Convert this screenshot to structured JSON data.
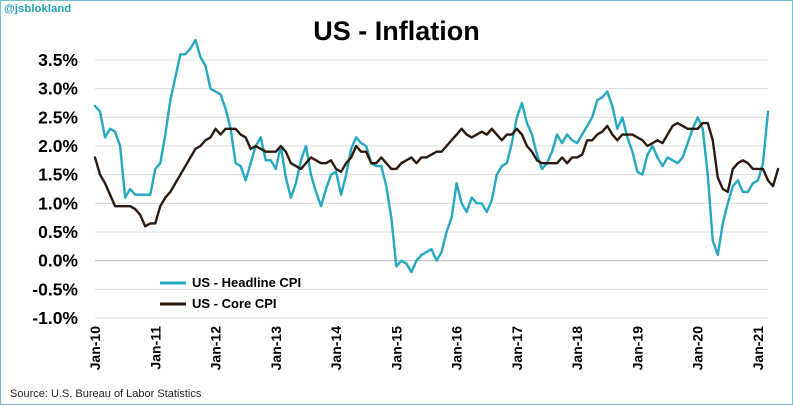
{
  "handle": "@jsblokland",
  "source": "Source: U.S. Bureau of Labor Statistics",
  "colors": {
    "headline": "#26a8c0",
    "core": "#2b1a10",
    "grid": "#dcdcdc",
    "frame": "#6fc3d0"
  },
  "chart_data": {
    "type": "line",
    "title": "US - Inflation",
    "xlabel": "",
    "ylabel": "",
    "ylim": [
      -1.0,
      3.5
    ],
    "yticks": [
      3.5,
      3.0,
      2.5,
      2.0,
      1.5,
      1.0,
      0.5,
      0.0,
      -0.5,
      -1.0
    ],
    "ytick_labels": [
      "3.5%",
      "3.0%",
      "2.5%",
      "2.0%",
      "1.5%",
      "1.0%",
      "0.5%",
      "0.0%",
      "-0.5%",
      "-1.0%"
    ],
    "xtick_labels": [
      "Jan-10",
      "Jan-11",
      "Jan-12",
      "Jan-13",
      "Jan-14",
      "Jan-15",
      "Jan-16",
      "Jan-17",
      "Jan-18",
      "Jan-19",
      "Jan-20",
      "Jan-21"
    ],
    "xtick_index": [
      0,
      12,
      24,
      36,
      48,
      60,
      72,
      84,
      96,
      108,
      120,
      132
    ],
    "x_start": "Jan-2010",
    "x_frequency": "monthly",
    "grid": true,
    "legend_position": "bottom-left",
    "series": [
      {
        "name": "US - Headline CPI",
        "color": "#26a8c0",
        "values": [
          2.7,
          2.6,
          2.15,
          2.3,
          2.25,
          2.0,
          1.1,
          1.25,
          1.15,
          1.15,
          1.15,
          1.15,
          1.6,
          1.7,
          2.2,
          2.8,
          3.2,
          3.6,
          3.6,
          3.7,
          3.85,
          3.55,
          3.4,
          3.0,
          2.95,
          2.9,
          2.65,
          2.3,
          1.7,
          1.65,
          1.4,
          1.7,
          2.0,
          2.15,
          1.75,
          1.75,
          1.6,
          2.0,
          1.45,
          1.1,
          1.35,
          1.75,
          2.0,
          1.5,
          1.2,
          0.95,
          1.25,
          1.5,
          1.55,
          1.15,
          1.5,
          1.95,
          2.15,
          2.05,
          2.0,
          1.7,
          1.65,
          1.65,
          1.3,
          0.75,
          -0.1,
          0.0,
          -0.05,
          -0.2,
          0.0,
          0.1,
          0.15,
          0.2,
          0.0,
          0.15,
          0.5,
          0.75,
          1.35,
          1.0,
          0.85,
          1.1,
          1.0,
          1.0,
          0.85,
          1.05,
          1.5,
          1.65,
          1.7,
          2.05,
          2.5,
          2.75,
          2.4,
          2.2,
          1.85,
          1.6,
          1.7,
          1.9,
          2.2,
          2.05,
          2.2,
          2.1,
          2.05,
          2.2,
          2.35,
          2.5,
          2.8,
          2.85,
          2.95,
          2.7,
          2.3,
          2.5,
          2.15,
          1.9,
          1.55,
          1.5,
          1.85,
          2.0,
          1.8,
          1.65,
          1.8,
          1.75,
          1.7,
          1.8,
          2.05,
          2.3,
          2.5,
          2.3,
          1.5,
          0.35,
          0.1,
          0.65,
          1.0,
          1.3,
          1.4,
          1.2,
          1.2,
          1.35,
          1.4,
          1.7,
          2.6
        ]
      },
      {
        "name": "US - Core CPI",
        "color": "#2b1a10",
        "values": [
          1.8,
          1.5,
          1.35,
          1.15,
          0.95,
          0.95,
          0.95,
          0.95,
          0.9,
          0.8,
          0.6,
          0.65,
          0.65,
          0.95,
          1.1,
          1.2,
          1.35,
          1.5,
          1.65,
          1.8,
          1.95,
          2.0,
          2.1,
          2.15,
          2.3,
          2.2,
          2.3,
          2.3,
          2.3,
          2.2,
          2.15,
          1.95,
          2.0,
          1.95,
          1.9,
          1.9,
          1.9,
          2.0,
          1.9,
          1.7,
          1.65,
          1.6,
          1.7,
          1.8,
          1.75,
          1.7,
          1.7,
          1.75,
          1.6,
          1.55,
          1.7,
          1.8,
          2.0,
          1.9,
          1.9,
          1.7,
          1.7,
          1.8,
          1.7,
          1.6,
          1.6,
          1.7,
          1.75,
          1.8,
          1.7,
          1.8,
          1.8,
          1.85,
          1.9,
          1.9,
          2.0,
          2.1,
          2.2,
          2.3,
          2.2,
          2.15,
          2.2,
          2.25,
          2.2,
          2.3,
          2.2,
          2.1,
          2.2,
          2.2,
          2.3,
          2.2,
          2.0,
          1.9,
          1.75,
          1.7,
          1.7,
          1.7,
          1.7,
          1.8,
          1.7,
          1.8,
          1.8,
          1.85,
          2.1,
          2.1,
          2.2,
          2.25,
          2.35,
          2.2,
          2.1,
          2.2,
          2.2,
          2.2,
          2.15,
          2.1,
          2.0,
          2.05,
          2.1,
          2.05,
          2.2,
          2.35,
          2.4,
          2.35,
          2.3,
          2.3,
          2.3,
          2.4,
          2.4,
          2.1,
          1.45,
          1.25,
          1.2,
          1.6,
          1.7,
          1.75,
          1.7,
          1.6,
          1.6,
          1.6,
          1.4,
          1.3,
          1.6
        ]
      }
    ]
  }
}
